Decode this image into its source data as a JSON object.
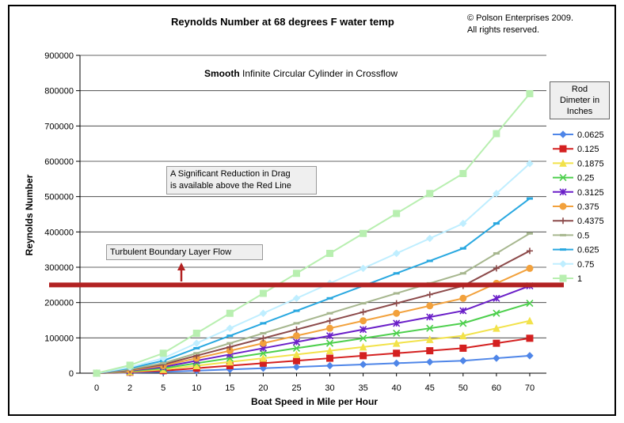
{
  "header": {
    "title": "Reynolds Number at 68 degrees F water temp",
    "copyright_line1": "© Polson Enterprises 2009.",
    "copyright_line2": "All rights reserved."
  },
  "annotations": {
    "subtitle_bold": "Smooth",
    "subtitle_rest": " Infinite Circular Cylinder in Crossflow",
    "drag_note_line1": "A Significant Reduction in Drag",
    "drag_note_line2": "is available above the Red Line",
    "turbulent_note": "Turbulent Boundary Layer Flow"
  },
  "legend": {
    "title_line1": "Rod",
    "title_line2": "Dimeter in",
    "title_line3": "Inches"
  },
  "chart_data": {
    "type": "line",
    "title": "Reynolds Number at 68 degrees F water temp",
    "xlabel": "Boat Speed in Mile per Hour",
    "ylabel": "Reynolds Number",
    "categories": [
      "0",
      "2",
      "5",
      "10",
      "15",
      "20",
      "25",
      "30",
      "35",
      "40",
      "45",
      "50",
      "60",
      "70"
    ],
    "ylim": [
      0,
      900000
    ],
    "yticks": [
      0,
      100000,
      200000,
      300000,
      400000,
      500000,
      600000,
      700000,
      800000,
      900000
    ],
    "grid": true,
    "legend_position": "right",
    "reference_line": {
      "value": 250000,
      "color": "#b22222"
    },
    "series": [
      {
        "name": "0.0625",
        "color": "#4f86e8",
        "marker": "diamond",
        "values": [
          0,
          1400,
          3500,
          7100,
          10600,
          14100,
          17700,
          21200,
          24700,
          28300,
          31800,
          35300,
          42400,
          49500
        ]
      },
      {
        "name": "0.125",
        "color": "#d42020",
        "marker": "square",
        "values": [
          0,
          2800,
          7100,
          14100,
          21200,
          28300,
          35300,
          42400,
          49500,
          56500,
          63600,
          70700,
          84800,
          98900
        ]
      },
      {
        "name": "0.1875",
        "color": "#f2e24a",
        "marker": "triangle",
        "values": [
          0,
          4200,
          10600,
          21200,
          31800,
          42400,
          53000,
          63600,
          74200,
          84800,
          95400,
          106000,
          127200,
          148400
        ]
      },
      {
        "name": "0.25",
        "color": "#4ccf4c",
        "marker": "x",
        "values": [
          0,
          5700,
          14100,
          28300,
          42400,
          56500,
          70700,
          84800,
          98900,
          113100,
          127200,
          141300,
          169600,
          197900
        ]
      },
      {
        "name": "0.3125",
        "color": "#6a1fc8",
        "marker": "star",
        "values": [
          0,
          7100,
          17700,
          35300,
          53000,
          70700,
          88300,
          106000,
          123700,
          141300,
          159000,
          176700,
          212000,
          247300
        ]
      },
      {
        "name": "0.375",
        "color": "#f2a13c",
        "marker": "circle",
        "values": [
          0,
          8500,
          21200,
          42400,
          63600,
          84800,
          106000,
          127200,
          148400,
          169600,
          190800,
          212000,
          254400,
          296800
        ]
      },
      {
        "name": "0.4375",
        "color": "#8c4a4a",
        "marker": "plus",
        "values": [
          0,
          9900,
          24700,
          49500,
          74200,
          98900,
          123700,
          148400,
          173100,
          197900,
          222600,
          247300,
          296800,
          346300
        ]
      },
      {
        "name": "0.5",
        "color": "#a7b78f",
        "marker": "dash",
        "values": [
          0,
          11300,
          28300,
          56500,
          84800,
          113100,
          141300,
          169600,
          197900,
          226100,
          254400,
          282700,
          339200,
          395700
        ]
      },
      {
        "name": "0.625",
        "color": "#29a8e0",
        "marker": "dash",
        "values": [
          0,
          14100,
          35300,
          70700,
          106000,
          141300,
          176700,
          212000,
          247300,
          282700,
          318000,
          353300,
          424000,
          494600
        ]
      },
      {
        "name": "0.75",
        "color": "#bfeeff",
        "marker": "diamond",
        "values": [
          0,
          17000,
          42400,
          84800,
          127200,
          169600,
          212000,
          254400,
          296800,
          339200,
          381600,
          424000,
          508800,
          593600
        ]
      },
      {
        "name": "1",
        "color": "#b8efb0",
        "marker": "square",
        "values": [
          0,
          22600,
          56500,
          113100,
          169600,
          226100,
          282700,
          339200,
          395700,
          452200,
          508800,
          565300,
          678400,
          791500
        ]
      }
    ]
  }
}
